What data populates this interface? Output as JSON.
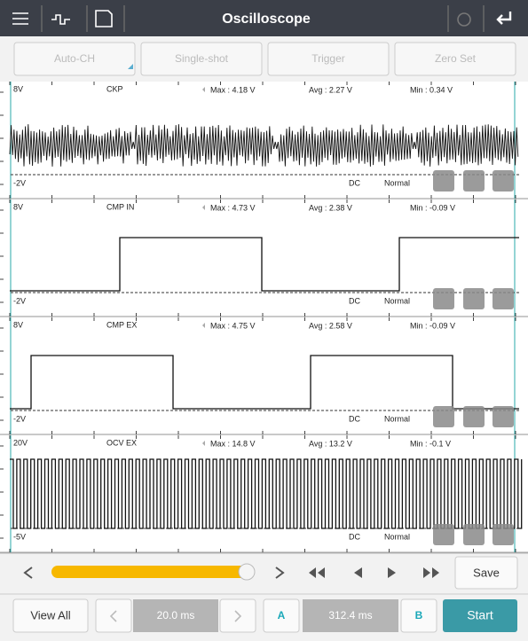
{
  "header": {
    "title": "Oscilloscope"
  },
  "toolbar": [
    "Auto-CH",
    "Single-shot",
    "Trigger",
    "Zero Set"
  ],
  "channels": [
    {
      "scale_top": "8V",
      "name": "CKP",
      "max": "Max : 4.18 V",
      "avg": "Avg : 2.27 V",
      "min": "Min : 0.34 V",
      "scale_bottom": "-2V",
      "coupling": "DC",
      "mode": "Normal"
    },
    {
      "scale_top": "8V",
      "name": "CMP IN",
      "max": "Max : 4.73 V",
      "avg": "Avg : 2.38 V",
      "min": "Min : -0.09 V",
      "scale_bottom": "-2V",
      "coupling": "DC",
      "mode": "Normal"
    },
    {
      "scale_top": "8V",
      "name": "CMP EX",
      "max": "Max : 4.75 V",
      "avg": "Avg : 2.58 V",
      "min": "Min : -0.09 V",
      "scale_bottom": "-2V",
      "coupling": "DC",
      "mode": "Normal"
    },
    {
      "scale_top": "20V",
      "name": "OCV EX",
      "max": "Max : 14.8 V",
      "avg": "Avg : 13.2 V",
      "min": "Min : -0.1 V",
      "scale_bottom": "-5V",
      "coupling": "DC",
      "mode": "Normal"
    }
  ],
  "controls": {
    "save": "Save",
    "view_all": "View All",
    "time_base": "20.0 ms",
    "marker_a": "A",
    "cursor_time": "312.4 ms",
    "marker_b": "B",
    "start": "Start"
  }
}
